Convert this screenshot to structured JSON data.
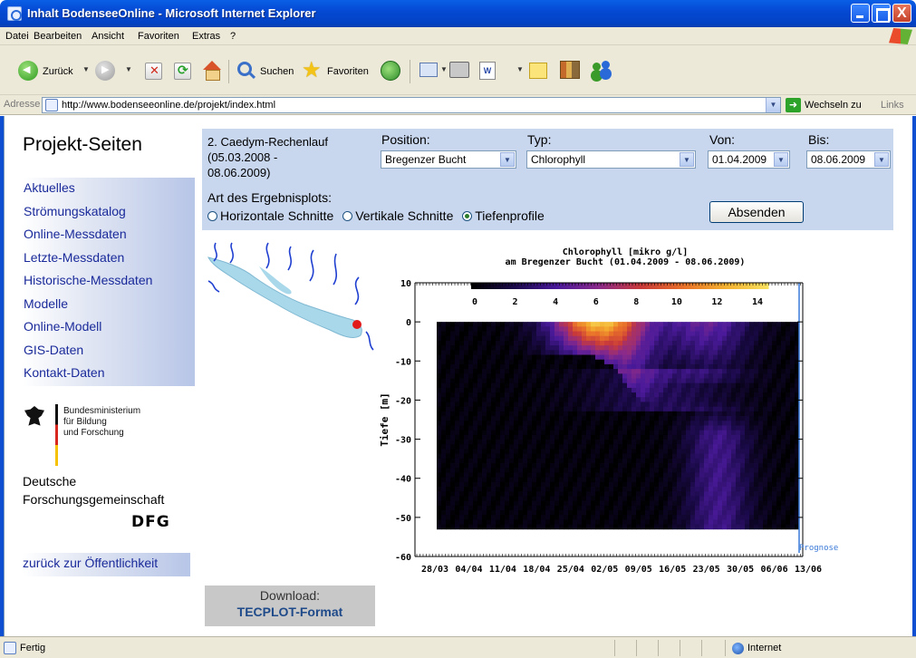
{
  "window": {
    "title": "Inhalt BodenseeOnline - Microsoft Internet Explorer",
    "close_glyph": "X"
  },
  "menu": {
    "items": [
      "Datei",
      "Bearbeiten",
      "Ansicht",
      "Favoriten",
      "Extras",
      "?"
    ]
  },
  "toolbar": {
    "back_label": "Zurück",
    "search_label": "Suchen",
    "favorites_label": "Favoriten",
    "word_glyph": "W"
  },
  "address": {
    "label": "Adresse",
    "url": "http://www.bodenseeonline.de/projekt/index.html",
    "go_label": "Wechseln zu",
    "links_label": "Links"
  },
  "sidebar": {
    "title": "Projekt-Seiten",
    "items": [
      {
        "label": "Aktuelles"
      },
      {
        "label": "Strömungskatalog"
      },
      {
        "label": "Online-Messdaten"
      },
      {
        "label": "Letzte-Messdaten"
      },
      {
        "label": "Historische-Messdaten"
      },
      {
        "label": "Modelle"
      },
      {
        "label": "Online-Modell"
      },
      {
        "label": "GIS-Daten"
      },
      {
        "label": "Kontakt-Daten"
      }
    ],
    "bmbf_lines": [
      "Bundesministerium",
      "für Bildung",
      "und Forschung"
    ],
    "dfg_lines": [
      "Deutsche",
      "Forschungsgemeinschaft"
    ],
    "dfg_logo": "DFG",
    "back_link": "zurück zur Öffentlichkeit"
  },
  "form": {
    "run_lines": [
      "2. Caedym-Rechenlauf",
      "(05.03.2008 -",
      "08.06.2009)"
    ],
    "position_label": "Position:",
    "position_value": "Bregenzer Bucht",
    "type_label": "Typ:",
    "type_value": "Chlorophyll",
    "from_label": "Von:",
    "from_value": "01.04.2009",
    "to_label": "Bis:",
    "to_value": "08.06.2009",
    "plot_type_label": "Art des Ergebnisplots:",
    "options": [
      "Horizontale Schnitte",
      "Vertikale Schnitte",
      "Tiefenprofile"
    ],
    "selected_option": "Tiefenprofile",
    "submit_label": "Absenden"
  },
  "chart_data": {
    "type": "heatmap",
    "title": "Chlorophyll [mikro g/l]",
    "subtitle": "am Bregenzer Bucht (01.04.2009 - 08.06.2009)",
    "ylabel": "Tiefe [m]",
    "xlabel": "",
    "y_ticks": [
      10,
      0,
      -10,
      -20,
      -30,
      -40,
      -50,
      -60
    ],
    "ylim": [
      -60,
      10
    ],
    "x_ticks": [
      "28/03",
      "04/04",
      "11/04",
      "18/04",
      "25/04",
      "02/05",
      "09/05",
      "16/05",
      "23/05",
      "30/05",
      "06/06",
      "13/06"
    ],
    "colorbar": {
      "ticks": [
        0,
        2,
        4,
        6,
        8,
        10,
        12,
        14
      ],
      "range": [
        0,
        14
      ],
      "colors": [
        "#000000",
        "#1b0a4a",
        "#4a1a9a",
        "#8a2a8a",
        "#c83a3a",
        "#e8702a",
        "#f4b030",
        "#f8e060"
      ]
    },
    "forecast_label": "Prognose",
    "legend": "top-inside",
    "grid": false
  },
  "download": {
    "label": "Download:",
    "format": "TECPLOT-Format"
  },
  "status": {
    "text": "Fertig",
    "zone": "Internet"
  }
}
